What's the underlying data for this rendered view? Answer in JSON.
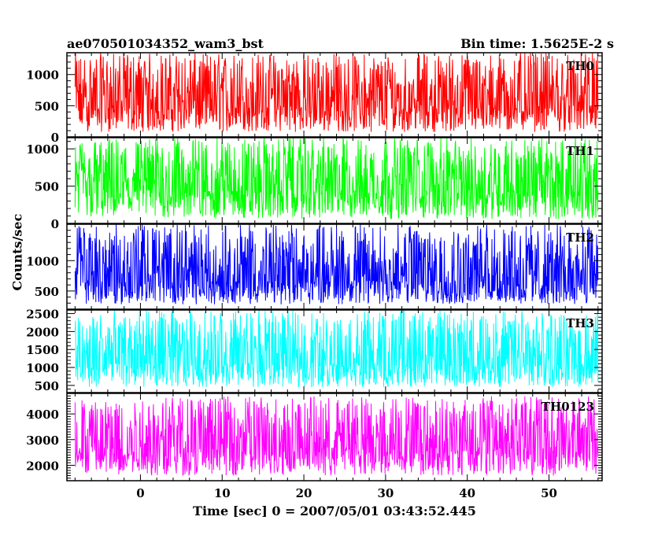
{
  "title_left": "ae070501034352_wam3_bst",
  "title_right": "Bin time: 1.5625E-2 s",
  "ylabel": "Counts/sec",
  "xlabel": "Time [sec] 0 = 2007/05/01 03:43:52.445",
  "chart_data": {
    "type": "line",
    "xlabel": "Time [sec] 0 = 2007/05/01 03:43:52.445",
    "ylabel": "Counts/sec",
    "xlim": [
      -9,
      56.5
    ],
    "x_ticks": [
      0,
      10,
      20,
      30,
      40,
      50
    ],
    "x_range_data": [
      -8,
      56
    ],
    "panels": [
      {
        "name": "TH0",
        "color": "#ff0000",
        "ylim": [
          0,
          1350
        ],
        "y_ticks": [
          0,
          500,
          1000
        ],
        "mean": 560,
        "low": 80,
        "high": 1350
      },
      {
        "name": "TH1",
        "color": "#00ff00",
        "ylim": [
          0,
          1150
        ],
        "y_ticks": [
          0,
          500,
          1000
        ],
        "mean": 500,
        "low": 60,
        "high": 1150
      },
      {
        "name": "TH2",
        "color": "#0000ff",
        "ylim": [
          200,
          1600
        ],
        "y_ticks": [
          500,
          1000
        ],
        "mean": 720,
        "low": 280,
        "high": 1600
      },
      {
        "name": "TH3",
        "color": "#00ffff",
        "ylim": [
          300,
          2600
        ],
        "y_ticks": [
          500,
          1000,
          1500,
          2000,
          2500
        ],
        "mean": 1200,
        "low": 450,
        "high": 2600
      },
      {
        "name": "TH0123",
        "color": "#ff00ff",
        "ylim": [
          1400,
          4800
        ],
        "y_ticks": [
          2000,
          3000,
          4000
        ],
        "mean": 2850,
        "low": 1600,
        "high": 4700
      }
    ]
  }
}
